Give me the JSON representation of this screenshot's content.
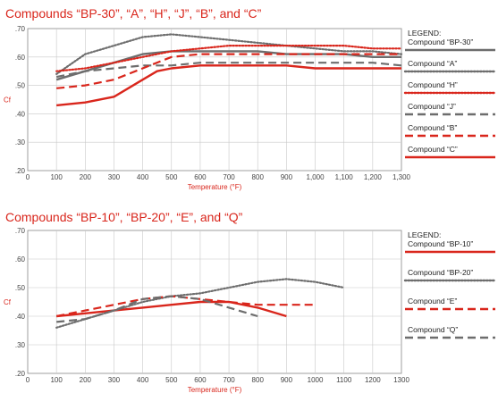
{
  "chart_data": [
    {
      "type": "line",
      "title": "Compounds “BP-30”, “A”, “H”, “J”, “B”, and “C”",
      "xlabel": "Temperature (°F)",
      "ylabel": "Cf",
      "xlim": [
        0,
        1300
      ],
      "ylim": [
        0.2,
        0.7
      ],
      "x_ticks": [
        "0",
        "100",
        "200",
        "300",
        "400",
        "500",
        "600",
        "700",
        "800",
        "900",
        "1,000",
        "1,100",
        "1,200",
        "1,300"
      ],
      "y_ticks": [
        ".20",
        ".30",
        ".40",
        ".50",
        ".60",
        ".70"
      ],
      "legend_title": "LEGEND:",
      "legend_position": "right",
      "grid": true,
      "series": [
        {
          "name": "Compound “BP-30”",
          "color": "#6d6d6d",
          "style": "solid",
          "x": [
            100,
            200,
            300,
            400,
            500,
            600,
            700,
            800,
            900,
            1000,
            1100,
            1200,
            1300
          ],
          "y": [
            0.52,
            0.55,
            0.58,
            0.61,
            0.62,
            0.62,
            0.62,
            0.62,
            0.61,
            0.61,
            0.61,
            0.6,
            0.6
          ]
        },
        {
          "name": "Compound “A”",
          "color": "#6d6d6d",
          "style": "dotted",
          "x": [
            100,
            200,
            300,
            400,
            500,
            600,
            700,
            800,
            900,
            1000,
            1100,
            1200,
            1300
          ],
          "y": [
            0.54,
            0.61,
            0.64,
            0.67,
            0.68,
            0.67,
            0.66,
            0.65,
            0.64,
            0.63,
            0.62,
            0.62,
            0.61
          ]
        },
        {
          "name": "Compound “H”",
          "color": "#d9261c",
          "style": "dotted",
          "x": [
            100,
            200,
            300,
            400,
            500,
            600,
            700,
            800,
            900,
            1000,
            1100,
            1200,
            1300
          ],
          "y": [
            0.55,
            0.56,
            0.58,
            0.6,
            0.62,
            0.63,
            0.64,
            0.64,
            0.64,
            0.64,
            0.64,
            0.63,
            0.63
          ]
        },
        {
          "name": "Compound “J”",
          "color": "#6d6d6d",
          "style": "dashed",
          "x": [
            100,
            200,
            300,
            400,
            500,
            600,
            700,
            800,
            900,
            1000,
            1100,
            1200,
            1300
          ],
          "y": [
            0.53,
            0.55,
            0.56,
            0.57,
            0.57,
            0.58,
            0.58,
            0.58,
            0.58,
            0.58,
            0.58,
            0.58,
            0.57
          ]
        },
        {
          "name": "Compound “B”",
          "color": "#d9261c",
          "style": "dashed",
          "x": [
            100,
            200,
            300,
            400,
            500,
            600,
            700,
            800,
            900,
            1000,
            1100,
            1200,
            1300
          ],
          "y": [
            0.49,
            0.5,
            0.52,
            0.56,
            0.6,
            0.61,
            0.61,
            0.61,
            0.61,
            0.61,
            0.61,
            0.61,
            0.61
          ]
        },
        {
          "name": "Compound “C”",
          "color": "#d9261c",
          "style": "solid",
          "x": [
            100,
            200,
            300,
            350,
            400,
            450,
            500,
            600,
            700,
            800,
            900,
            1000,
            1100,
            1200,
            1300
          ],
          "y": [
            0.43,
            0.44,
            0.46,
            0.49,
            0.52,
            0.55,
            0.56,
            0.57,
            0.57,
            0.57,
            0.57,
            0.56,
            0.56,
            0.56,
            0.56
          ]
        }
      ]
    },
    {
      "type": "line",
      "title": "Compounds “BP-10”, “BP-20”, “E”, and “Q”",
      "xlabel": "Temperature (°F)",
      "ylabel": "Cf",
      "xlim": [
        0,
        1300
      ],
      "ylim": [
        0.2,
        0.7
      ],
      "x_ticks": [
        "0",
        "100",
        "200",
        "300",
        "400",
        "500",
        "600",
        "700",
        "800",
        "900",
        "1000",
        "1100",
        "1200",
        "1300"
      ],
      "y_ticks": [
        ".20",
        ".30",
        ".40",
        ".50",
        ".60",
        ".70"
      ],
      "legend_title": "LEGEND:",
      "legend_position": "right",
      "grid": true,
      "series": [
        {
          "name": "Compound “BP-10”",
          "color": "#d9261c",
          "style": "solid",
          "x": [
            100,
            200,
            300,
            400,
            500,
            600,
            700,
            800,
            900
          ],
          "y": [
            0.4,
            0.41,
            0.42,
            0.43,
            0.44,
            0.45,
            0.45,
            0.43,
            0.4
          ]
        },
        {
          "name": "Compound “BP-20”",
          "color": "#6d6d6d",
          "style": "dotted",
          "x": [
            100,
            200,
            300,
            400,
            500,
            600,
            700,
            800,
            900,
            1000,
            1100
          ],
          "y": [
            0.36,
            0.39,
            0.42,
            0.45,
            0.47,
            0.48,
            0.5,
            0.52,
            0.53,
            0.52,
            0.5
          ]
        },
        {
          "name": "Compound “E”",
          "color": "#d9261c",
          "style": "dashed",
          "x": [
            100,
            200,
            300,
            400,
            500,
            600,
            700,
            800,
            900,
            1000
          ],
          "y": [
            0.4,
            0.42,
            0.44,
            0.46,
            0.47,
            0.46,
            0.45,
            0.44,
            0.44,
            0.44
          ]
        },
        {
          "name": "Compound “Q”",
          "color": "#6d6d6d",
          "style": "dashed",
          "x": [
            100,
            200,
            300,
            400,
            500,
            600,
            700,
            800
          ],
          "y": [
            0.38,
            0.39,
            0.42,
            0.46,
            0.47,
            0.46,
            0.43,
            0.4
          ]
        }
      ]
    }
  ]
}
